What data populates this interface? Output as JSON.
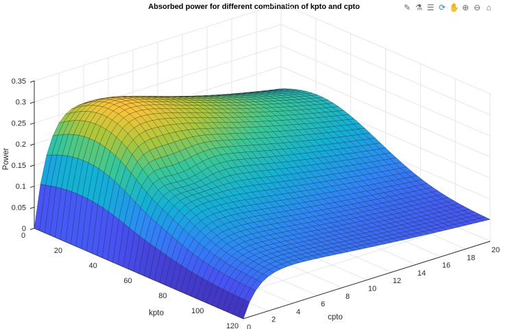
{
  "toolbar": {
    "icons": [
      "brush-icon",
      "data-tip-icon",
      "legend-icon",
      "rotate-3d-icon",
      "pan-icon",
      "zoom-in-icon",
      "zoom-out-icon",
      "home-icon"
    ],
    "active": "rotate-3d-icon"
  },
  "chart_data": {
    "type": "surface",
    "title": "Absorbed power for different combination of kpto and cpto",
    "xlabel": "cpto",
    "ylabel": "kpto",
    "zlabel": "Power",
    "xlim": [
      0,
      20
    ],
    "ylim": [
      0,
      120
    ],
    "zlim": [
      0,
      0.35
    ],
    "xticks": [
      "0",
      "2",
      "4",
      "6",
      "8",
      "10",
      "12",
      "14",
      "16",
      "18",
      "20"
    ],
    "yticks": [
      "0",
      "20",
      "40",
      "60",
      "80",
      "100",
      "120"
    ],
    "zticks": [
      "0",
      "0.05",
      "0.1",
      "0.15",
      "0.2",
      "0.25",
      "0.3",
      "0.35"
    ],
    "colormap": "parula",
    "grid": true,
    "peak": {
      "kpto": 25,
      "cpto": 3,
      "power": 0.35
    },
    "corner_values": {
      "kpto0_cpto20": 0.3,
      "kpto120_cpto20": 0.05,
      "cpto0": 0
    }
  }
}
